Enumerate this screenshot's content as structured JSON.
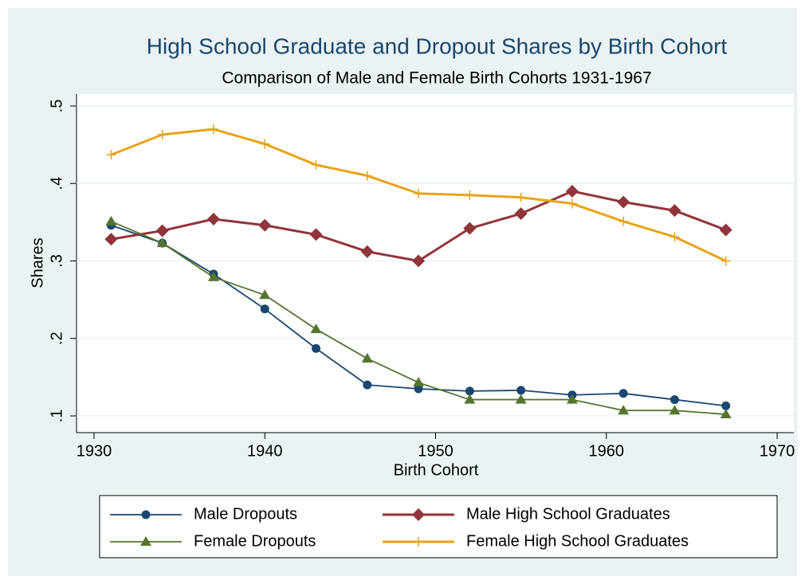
{
  "chart_data": {
    "type": "line",
    "title": "High School Graduate and Dropout Shares by Birth Cohort",
    "subtitle": "Comparison of Male and Female Birth Cohorts 1931-1967",
    "x_label": "Birth Cohort",
    "y_label": "Shares",
    "x": [
      1931,
      1934,
      1937,
      1940,
      1943,
      1946,
      1949,
      1952,
      1955,
      1958,
      1961,
      1964,
      1967
    ],
    "series": [
      {
        "name": "Male Dropouts",
        "color": "#1a476f",
        "marker": "circle",
        "values": [
          0.346,
          0.323,
          0.283,
          0.238,
          0.187,
          0.14,
          0.135,
          0.132,
          0.133,
          0.127,
          0.129,
          0.121,
          0.113
        ]
      },
      {
        "name": "Male High School Graduates",
        "color": "#90353b",
        "marker": "diamond",
        "values": [
          0.328,
          0.339,
          0.354,
          0.346,
          0.334,
          0.312,
          0.3,
          0.342,
          0.361,
          0.39,
          0.376,
          0.365,
          0.34
        ]
      },
      {
        "name": "Female Dropouts",
        "color": "#55752f",
        "marker": "triangle",
        "values": [
          0.351,
          0.323,
          0.279,
          0.256,
          0.212,
          0.174,
          0.143,
          0.121,
          0.121,
          0.121,
          0.107,
          0.107,
          0.102
        ]
      },
      {
        "name": "Female High School Graduates",
        "color": "#e8a31a",
        "marker": "plus",
        "values": [
          0.437,
          0.463,
          0.47,
          0.451,
          0.424,
          0.41,
          0.387,
          0.385,
          0.382,
          0.374,
          0.351,
          0.331,
          0.3
        ]
      }
    ],
    "xlim": [
      1930,
      1970
    ],
    "xticks": [
      1930,
      1940,
      1950,
      1960,
      1970
    ],
    "ylim": [
      0.1,
      0.5
    ],
    "yticks": [
      {
        "value": 0.1,
        "label": ".1"
      },
      {
        "value": 0.2,
        "label": ".2"
      },
      {
        "value": 0.3,
        "label": ".3"
      },
      {
        "value": 0.4,
        "label": ".4"
      },
      {
        "value": 0.5,
        "label": ".5"
      }
    ],
    "grid": true
  }
}
